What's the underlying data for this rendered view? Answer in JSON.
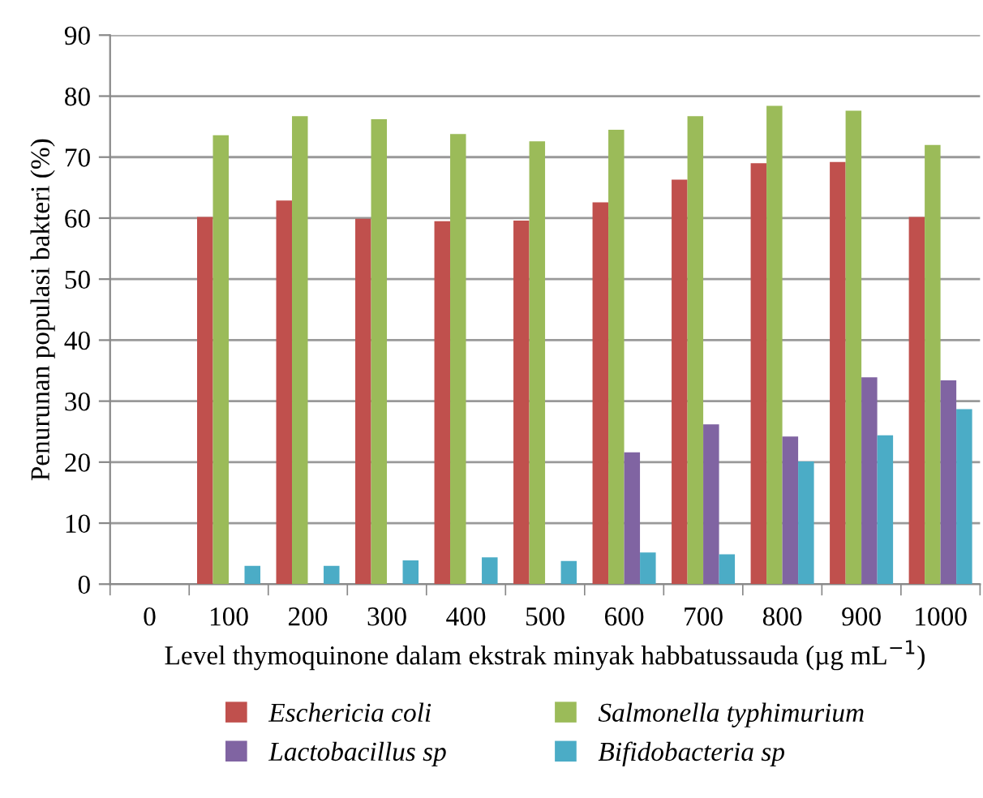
{
  "chart_data": {
    "type": "bar",
    "xlabel": "Level thymoquinone dalam ekstrak minyak habbatussauda (µg mL$^{−1}$)",
    "ylabel": "Penurunan populasi bakteri (%)",
    "categories": [
      "0",
      "100",
      "200",
      "300",
      "400",
      "500",
      "600",
      "700",
      "800",
      "900",
      "1000"
    ],
    "series": [
      {
        "name": "Eschericia coli",
        "color": "#c0504d",
        "values": [
          0,
          60.2,
          62.9,
          59.9,
          59.5,
          59.6,
          62.6,
          66.3,
          69.0,
          69.2,
          60.2
        ]
      },
      {
        "name": "Salmonella typhimurium",
        "color": "#9bbb59",
        "values": [
          0,
          73.6,
          76.7,
          76.2,
          73.8,
          72.6,
          74.5,
          76.7,
          78.4,
          77.6,
          72.0
        ]
      },
      {
        "name": "Lactobacillus sp",
        "color": "#8064a2",
        "values": [
          0,
          0,
          0,
          0,
          0,
          0,
          21.6,
          26.2,
          24.2,
          33.9,
          33.4
        ]
      },
      {
        "name": "Bifidobacteria sp",
        "color": "#4bacc6",
        "values": [
          0,
          3.0,
          3.0,
          3.9,
          4.4,
          3.8,
          5.2,
          4.9,
          20.1,
          24.4,
          28.7
        ]
      }
    ],
    "ylim": [
      0,
      90
    ],
    "yticks": [
      0,
      10,
      20,
      30,
      40,
      50,
      60,
      70,
      80,
      90
    ],
    "grid": "y",
    "legend": "bottom"
  }
}
